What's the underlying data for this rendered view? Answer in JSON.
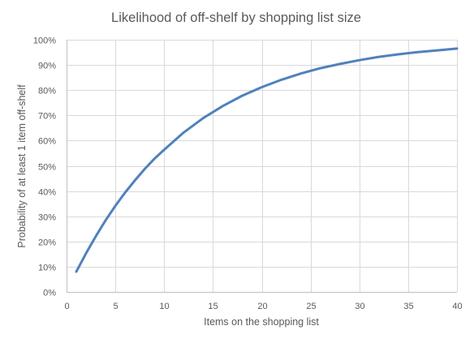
{
  "chart_data": {
    "type": "line",
    "title": "Likelihood of off-shelf by shopping list size",
    "xlabel": "Items on the shopping list",
    "ylabel": "Probability of at least 1 item off-shelf",
    "xlim": [
      0,
      40
    ],
    "ylim": [
      0,
      1
    ],
    "x_ticks": [
      0,
      5,
      10,
      15,
      20,
      25,
      30,
      35,
      40
    ],
    "y_ticks": [
      0,
      0.1,
      0.2,
      0.3,
      0.4,
      0.5,
      0.6,
      0.7,
      0.8,
      0.9,
      1.0
    ],
    "y_tick_labels": [
      "0%",
      "10%",
      "20%",
      "30%",
      "40%",
      "50%",
      "60%",
      "70%",
      "80%",
      "90%",
      "100%"
    ],
    "grid": true,
    "legend": "none",
    "line_color": "#4f81bd",
    "series": [
      {
        "x": [
          1,
          2,
          3,
          4,
          5,
          6,
          7,
          8,
          9,
          10,
          12,
          14,
          16,
          18,
          20,
          22,
          24,
          26,
          28,
          30,
          32,
          34,
          36,
          38,
          40
        ],
        "values": [
          0.08,
          0.153,
          0.221,
          0.284,
          0.341,
          0.394,
          0.442,
          0.487,
          0.528,
          0.564,
          0.632,
          0.689,
          0.737,
          0.778,
          0.812,
          0.841,
          0.866,
          0.887,
          0.904,
          0.919,
          0.932,
          0.942,
          0.951,
          0.958,
          0.965
        ]
      }
    ]
  }
}
